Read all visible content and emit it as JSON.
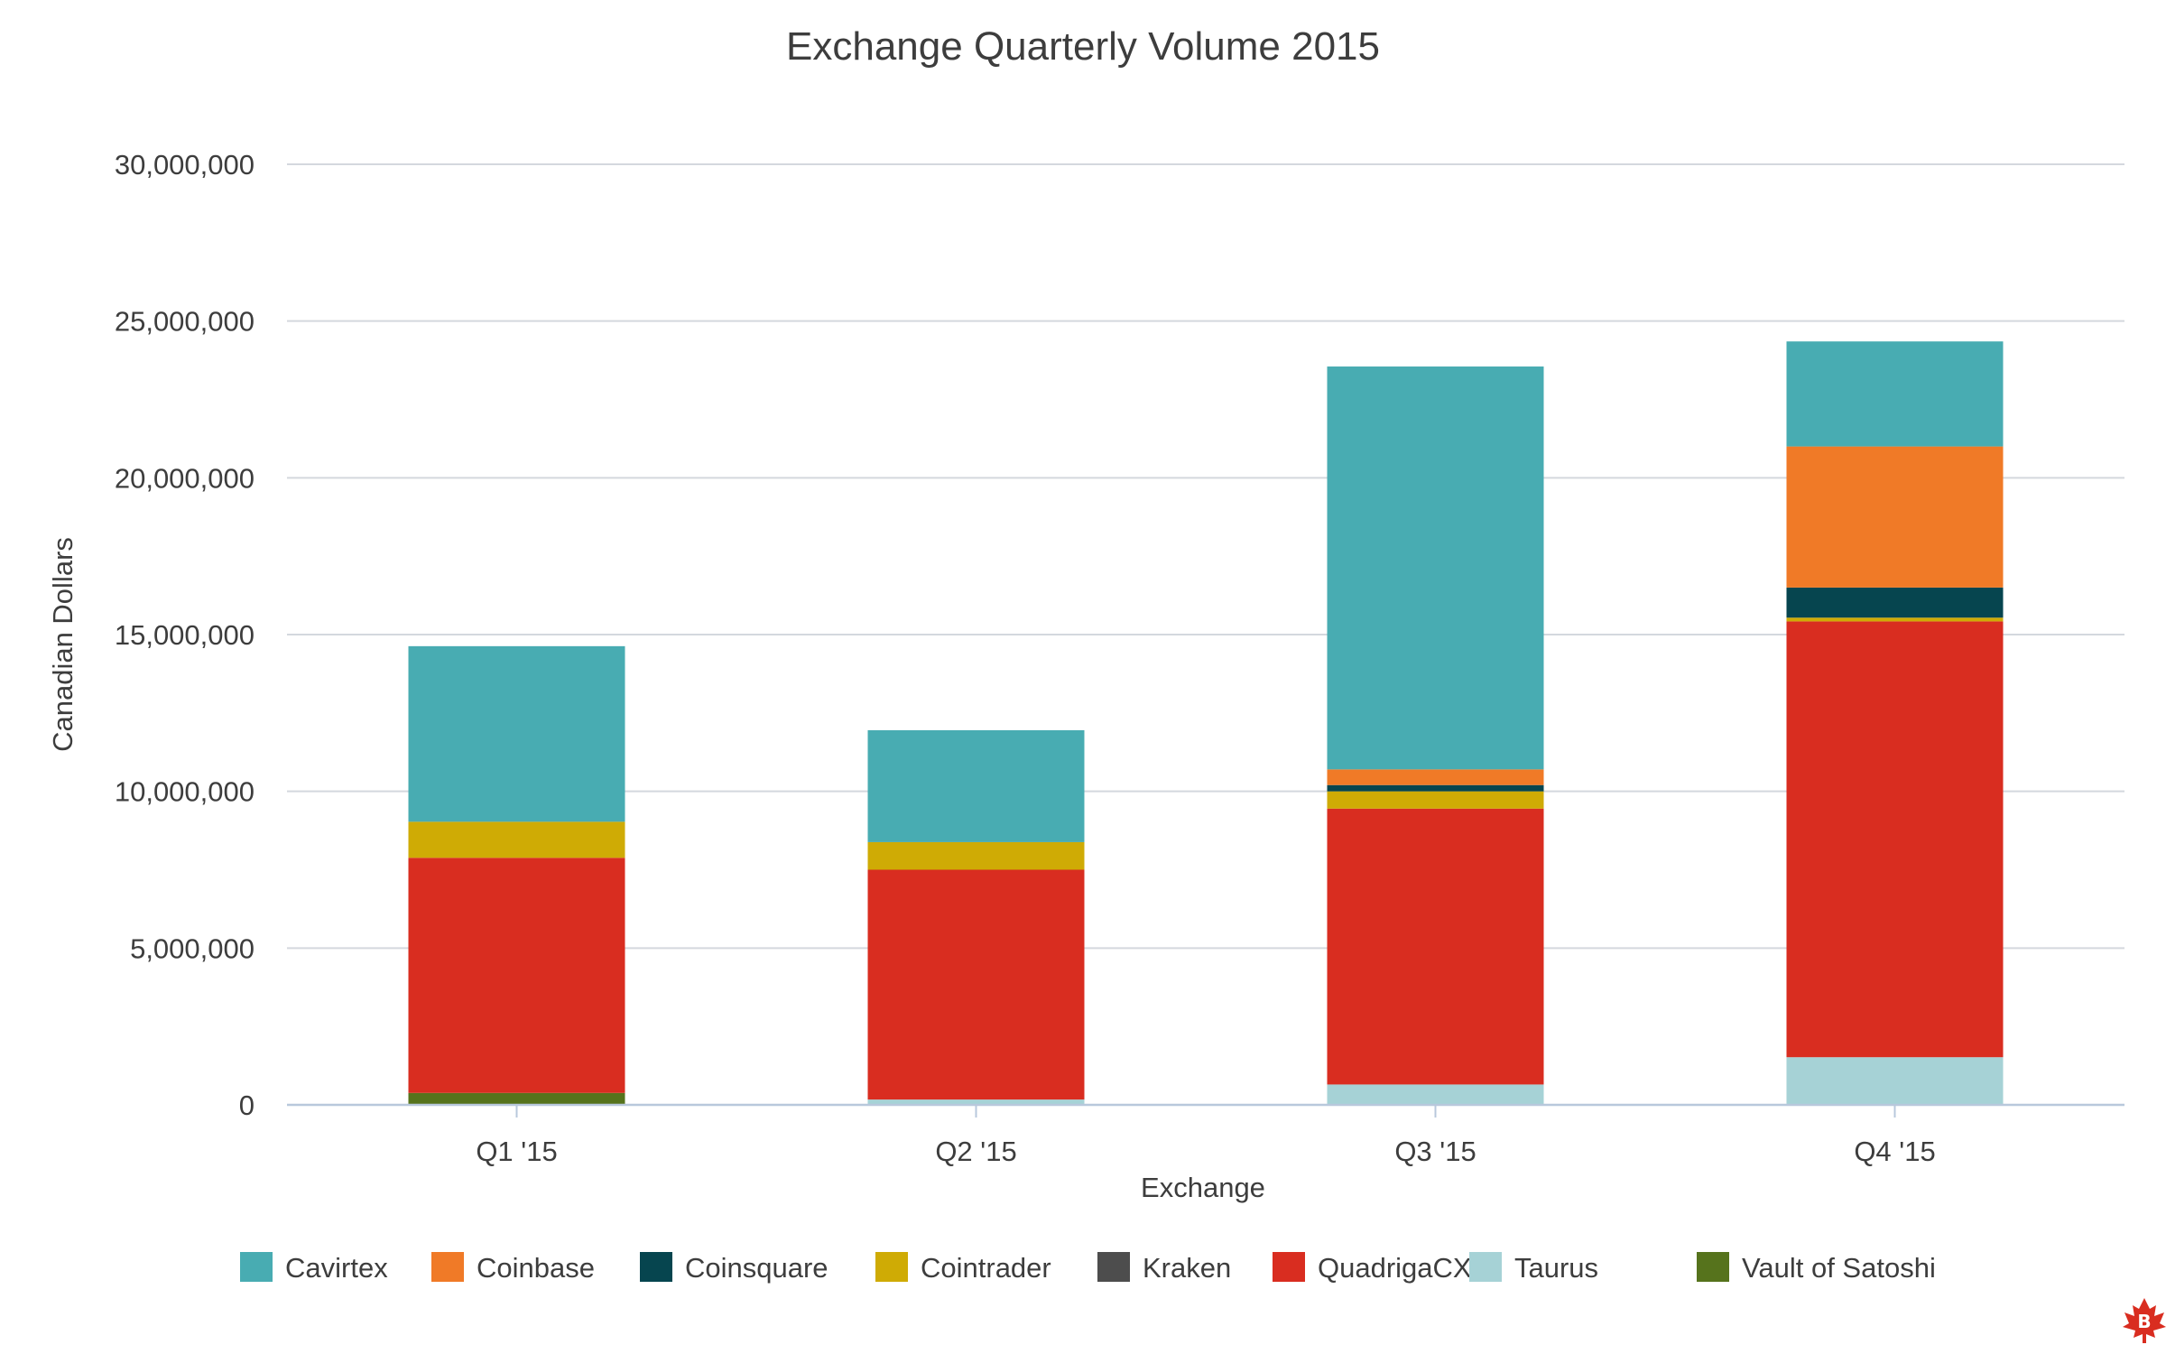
{
  "chart_data": {
    "type": "bar",
    "stacked": true,
    "title": "Exchange Quarterly Volume 2015",
    "xlabel": "Exchange",
    "ylabel": "Canadian Dollars",
    "ylim": [
      0,
      30000000
    ],
    "yticks": [
      0,
      5000000,
      10000000,
      15000000,
      20000000,
      25000000,
      30000000
    ],
    "ytick_labels": [
      "0",
      "5,000,000",
      "10,000,000",
      "15,000,000",
      "20,000,000",
      "25,000,000",
      "30,000,000"
    ],
    "categories": [
      "Q1 '15",
      "Q2 '15",
      "Q3 '15",
      "Q4 '15"
    ],
    "grid": true,
    "legend_position": "bottom",
    "series": [
      {
        "name": "Vault of Satoshi",
        "color": "#56731c",
        "values": [
          380000,
          0,
          0,
          0
        ]
      },
      {
        "name": "Taurus",
        "color": "#a6d2d6",
        "values": [
          0,
          170000,
          650000,
          1520000
        ]
      },
      {
        "name": "QuadrigaCX",
        "color": "#d92d20",
        "values": [
          7500000,
          7330000,
          8800000,
          13900000
        ]
      },
      {
        "name": "Kraken",
        "color": "#4d4d4d",
        "values": [
          0,
          0,
          0,
          0
        ]
      },
      {
        "name": "Cointrader",
        "color": "#cfab05",
        "values": [
          1150000,
          880000,
          550000,
          120000
        ]
      },
      {
        "name": "Coinsquare",
        "color": "#06454f",
        "values": [
          0,
          0,
          200000,
          960000
        ]
      },
      {
        "name": "Coinbase",
        "color": "#f07a27",
        "values": [
          0,
          0,
          500000,
          4500000
        ]
      },
      {
        "name": "Cavirtex",
        "color": "#48acb2",
        "values": [
          5600000,
          3570000,
          12850000,
          3350000
        ]
      }
    ],
    "legend_order": [
      "Cavirtex",
      "Coinbase",
      "Coinsquare",
      "Cointrader",
      "Kraken",
      "QuadrigaCX",
      "Taurus",
      "Vault of Satoshi"
    ]
  },
  "logo": {
    "name": "maple-leaf-bitcoin-logo",
    "color": "#d92d20"
  }
}
